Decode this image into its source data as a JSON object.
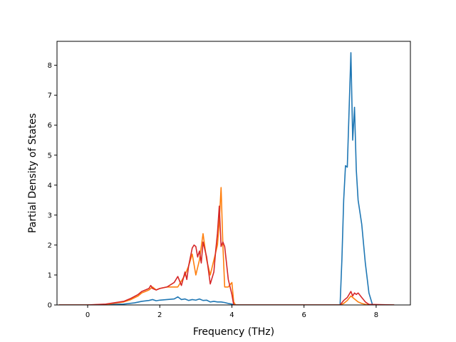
{
  "chart_data": {
    "type": "line",
    "title": "",
    "xlabel": "Frequency (THz)",
    "ylabel": "Partial Density of States",
    "xlim": [
      -0.85,
      8.95
    ],
    "ylim": [
      0,
      8.8
    ],
    "xticks": [
      0,
      2,
      4,
      6,
      8
    ],
    "yticks": [
      0,
      1,
      2,
      3,
      4,
      5,
      6,
      7,
      8
    ],
    "xtick_labels": [
      "0",
      "2",
      "4",
      "6",
      "8"
    ],
    "ytick_labels": [
      "0",
      "1",
      "2",
      "3",
      "4",
      "5",
      "6",
      "7",
      "8"
    ],
    "grid": false,
    "legend": "none",
    "series": [
      {
        "color": "#1f77b4",
        "x": [
          -0.8,
          0.0,
          0.5,
          1.0,
          1.3,
          1.5,
          1.7,
          1.8,
          1.9,
          2.0,
          2.2,
          2.4,
          2.5,
          2.6,
          2.7,
          2.8,
          2.9,
          3.0,
          3.1,
          3.2,
          3.3,
          3.4,
          3.5,
          3.6,
          3.7,
          3.8,
          3.9,
          4.0,
          4.05,
          4.5,
          5.0,
          6.0,
          7.0,
          7.05,
          7.1,
          7.15,
          7.2,
          7.25,
          7.3,
          7.35,
          7.4,
          7.45,
          7.5,
          7.6,
          7.7,
          7.8,
          7.9,
          8.5
        ],
        "y": [
          0,
          0,
          0.01,
          0.03,
          0.07,
          0.12,
          0.15,
          0.18,
          0.14,
          0.16,
          0.18,
          0.2,
          0.27,
          0.18,
          0.2,
          0.15,
          0.18,
          0.16,
          0.2,
          0.15,
          0.16,
          0.1,
          0.12,
          0.1,
          0.1,
          0.08,
          0.05,
          0.03,
          0,
          0,
          0,
          0,
          0,
          1.5,
          3.5,
          4.65,
          4.6,
          6.5,
          8.42,
          5.5,
          6.6,
          4.5,
          3.5,
          2.7,
          1.4,
          0.4,
          0,
          0
        ]
      },
      {
        "color": "#ff7f0e",
        "x": [
          -0.8,
          0.0,
          0.5,
          1.0,
          1.2,
          1.4,
          1.5,
          1.6,
          1.7,
          1.8,
          1.9,
          2.0,
          2.2,
          2.4,
          2.5,
          2.6,
          2.7,
          2.8,
          2.9,
          3.0,
          3.1,
          3.2,
          3.3,
          3.4,
          3.5,
          3.6,
          3.65,
          3.7,
          3.75,
          3.8,
          3.9,
          4.0,
          4.05,
          4.1,
          4.5,
          5.0,
          6.0,
          7.0,
          7.1,
          7.2,
          7.3,
          7.4,
          7.5,
          7.6,
          7.7,
          7.8,
          8.5
        ],
        "y": [
          0,
          0,
          0.02,
          0.1,
          0.18,
          0.3,
          0.4,
          0.45,
          0.5,
          0.6,
          0.5,
          0.55,
          0.6,
          0.6,
          0.6,
          0.8,
          1.0,
          1.3,
          1.7,
          1.0,
          1.5,
          2.38,
          1.5,
          1.0,
          1.5,
          2.0,
          2.8,
          3.92,
          2.0,
          0.6,
          0.6,
          0.75,
          0.1,
          0,
          0,
          0,
          0,
          0,
          0.05,
          0.15,
          0.3,
          0.2,
          0.1,
          0.05,
          0.02,
          0,
          0
        ]
      },
      {
        "color": "#d62728",
        "x": [
          -0.8,
          0.0,
          0.5,
          1.0,
          1.2,
          1.4,
          1.5,
          1.6,
          1.7,
          1.75,
          1.8,
          1.9,
          2.0,
          2.2,
          2.4,
          2.5,
          2.55,
          2.6,
          2.7,
          2.75,
          2.8,
          2.9,
          2.95,
          3.0,
          3.05,
          3.1,
          3.15,
          3.2,
          3.3,
          3.4,
          3.5,
          3.55,
          3.6,
          3.65,
          3.7,
          3.75,
          3.8,
          3.9,
          4.0,
          4.05,
          4.5,
          5.0,
          6.0,
          7.0,
          7.1,
          7.2,
          7.3,
          7.35,
          7.4,
          7.45,
          7.5,
          7.6,
          7.7,
          7.8,
          8.5
        ],
        "y": [
          0,
          0,
          0.03,
          0.12,
          0.22,
          0.35,
          0.45,
          0.5,
          0.55,
          0.65,
          0.55,
          0.5,
          0.55,
          0.6,
          0.75,
          0.95,
          0.8,
          0.65,
          1.1,
          0.85,
          1.3,
          1.9,
          2.0,
          1.95,
          1.6,
          1.8,
          1.4,
          2.1,
          1.6,
          0.7,
          1.1,
          1.8,
          2.4,
          3.3,
          1.95,
          2.1,
          1.95,
          0.85,
          0.35,
          0,
          0,
          0,
          0,
          0,
          0.15,
          0.25,
          0.45,
          0.3,
          0.4,
          0.35,
          0.4,
          0.25,
          0.1,
          0.02,
          0
        ]
      }
    ]
  }
}
